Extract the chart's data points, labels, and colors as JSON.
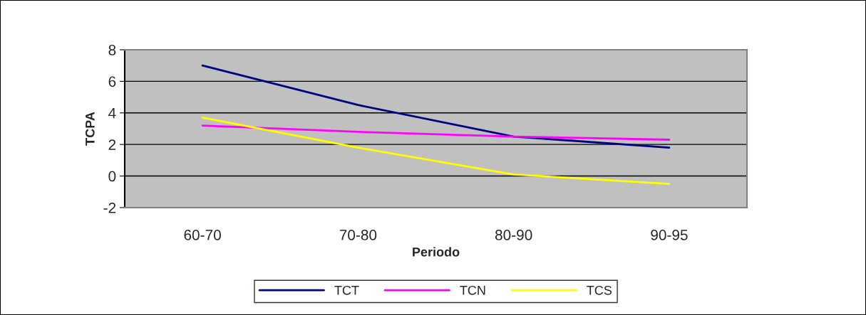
{
  "chart_data": {
    "type": "line",
    "xlabel": "Periodo",
    "ylabel": "TCPA",
    "categories": [
      "60-70",
      "70-80",
      "80-90",
      "90-95"
    ],
    "series": [
      {
        "name": "TCT",
        "color": "#000080",
        "values": [
          7.0,
          4.5,
          2.5,
          1.8
        ]
      },
      {
        "name": "TCN",
        "color": "#ff00ff",
        "values": [
          3.2,
          2.8,
          2.5,
          2.3
        ]
      },
      {
        "name": "TCS",
        "color": "#ffff00",
        "values": [
          3.7,
          1.8,
          0.1,
          -0.5
        ]
      }
    ],
    "ylim": [
      -2,
      8
    ],
    "yticks": [
      -2,
      0,
      2,
      4,
      6,
      8
    ],
    "grid": "y",
    "legend": "bottom",
    "marker": "none",
    "line_style": "solid"
  }
}
